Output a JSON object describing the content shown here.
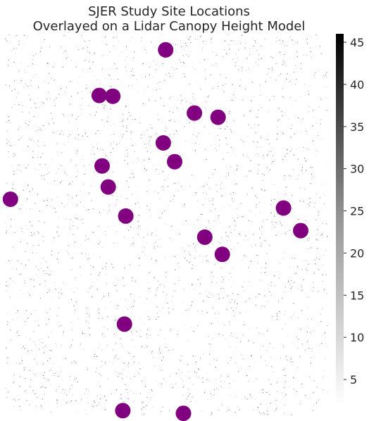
{
  "chart_data": {
    "type": "scatter",
    "title_lines": [
      "SJER Study Site Locations",
      "Overlayed on a Lidar Canopy Height Model"
    ],
    "xlabel": "",
    "ylabel": "",
    "x_axis": {
      "range": [
        0,
        1
      ],
      "ticks": []
    },
    "y_axis": {
      "range": [
        0,
        1
      ],
      "ticks": []
    },
    "background": {
      "type": "heatmap",
      "colormap": "Greys",
      "min": 2,
      "max": 46
    },
    "colorbar": {
      "min": 2,
      "max": 46,
      "placement": "right",
      "ticks": [
        5,
        10,
        15,
        20,
        25,
        30,
        35,
        40,
        45
      ],
      "tick_labels": [
        "5",
        "10",
        "15",
        "20",
        "25",
        "30",
        "35",
        "40",
        "45"
      ]
    },
    "marker_color": "#800080",
    "points": [
      {
        "x": 0.496,
        "y": 0.958
      },
      {
        "x": 0.291,
        "y": 0.839
      },
      {
        "x": 0.333,
        "y": 0.837
      },
      {
        "x": 0.585,
        "y": 0.793
      },
      {
        "x": 0.658,
        "y": 0.782
      },
      {
        "x": 0.489,
        "y": 0.715
      },
      {
        "x": 0.524,
        "y": 0.666
      },
      {
        "x": 0.3,
        "y": 0.655
      },
      {
        "x": 0.319,
        "y": 0.6
      },
      {
        "x": 0.017,
        "y": 0.568
      },
      {
        "x": 0.373,
        "y": 0.524
      },
      {
        "x": 0.86,
        "y": 0.545
      },
      {
        "x": 0.913,
        "y": 0.486
      },
      {
        "x": 0.617,
        "y": 0.469
      },
      {
        "x": 0.671,
        "y": 0.424
      },
      {
        "x": 0.369,
        "y": 0.242
      },
      {
        "x": 0.364,
        "y": 0.016
      },
      {
        "x": 0.551,
        "y": 0.009
      }
    ]
  }
}
